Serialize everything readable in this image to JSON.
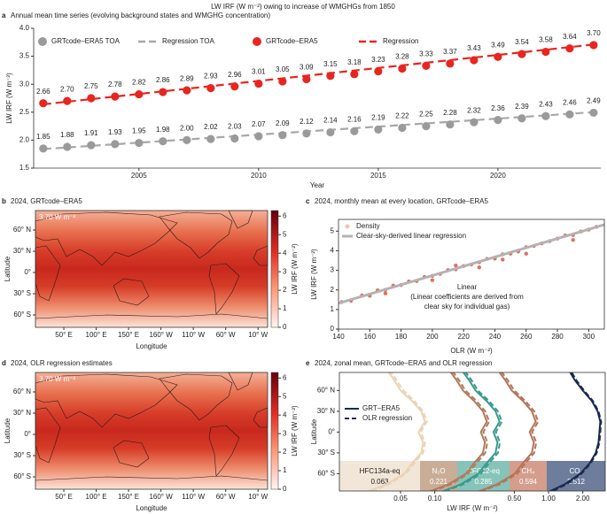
{
  "title": "LW IRF (W m⁻²) owing to increase of WMGHGs from 1850",
  "chart_data": [
    {
      "type": "line",
      "label": "a",
      "title": "Annual mean time series (evolving background states and WMGHG concentration)",
      "xlabel": "Year",
      "ylabel": "LW IRF (W m⁻²)",
      "x": [
        2001,
        2002,
        2003,
        2004,
        2005,
        2006,
        2007,
        2008,
        2009,
        2010,
        2011,
        2012,
        2013,
        2014,
        2015,
        2016,
        2017,
        2018,
        2019,
        2020,
        2021,
        2022,
        2023,
        2024
      ],
      "xlim": [
        2000.6,
        2024.3
      ],
      "xticks": [
        2005,
        2010,
        2015,
        2020
      ],
      "ylim": [
        1.5,
        4.0
      ],
      "yticks": [
        1.5,
        {
          "value": 2,
          "label": "2.0"
        },
        2.5,
        {
          "value": 3,
          "label": "3.0"
        },
        3.5,
        {
          "value": 4,
          "label": "4.0"
        }
      ],
      "series": [
        {
          "name": "GRTcode–ERA5 TOA",
          "color": "#9a9a9a",
          "values": [
            1.85,
            1.88,
            1.91,
            1.93,
            1.95,
            1.98,
            2.0,
            2.02,
            2.03,
            2.07,
            2.09,
            2.12,
            2.14,
            2.16,
            2.19,
            2.22,
            2.25,
            2.28,
            2.32,
            2.36,
            2.39,
            2.43,
            2.46,
            2.49
          ],
          "value_labels": [
            "1.85",
            "1.88",
            "1.91",
            "1.93",
            "1.95",
            "1.98",
            "2.00",
            "2.02",
            "2.03",
            "2.07",
            "2.09",
            "2.12",
            "2.14",
            "2.16",
            "2.19",
            "2.22",
            "2.25",
            "2.28",
            "2.32",
            "2.36",
            "2.39",
            "2.43",
            "2.46",
            "2.49"
          ]
        },
        {
          "name": "Regression TOA",
          "color": "#a8a8a8",
          "dashed": true,
          "x": [
            2001,
            2024
          ],
          "values": [
            1.84,
            2.5
          ]
        },
        {
          "name": "GRTcode–ERA5",
          "color": "#e8251f",
          "values": [
            2.66,
            2.7,
            2.75,
            2.78,
            2.82,
            2.86,
            2.89,
            2.93,
            2.96,
            3.01,
            3.05,
            3.09,
            3.15,
            3.18,
            3.23,
            3.28,
            3.33,
            3.37,
            3.43,
            3.49,
            3.54,
            3.58,
            3.64,
            3.7
          ],
          "value_labels": [
            "2.66",
            "2.70",
            "2.75",
            "2.78",
            "2.82",
            "2.86",
            "2.89",
            "2.93",
            "2.96",
            "3.01",
            "3.05",
            "3.09",
            "3.15",
            "3.18",
            "3.23",
            "3.28",
            "3.33",
            "3.37",
            "3.43",
            "3.49",
            "3.54",
            "3.58",
            "3.64",
            "3.70"
          ]
        },
        {
          "name": "Regression",
          "color": "#e8251f",
          "dashed": true,
          "x": [
            2001,
            2024
          ],
          "values": [
            2.64,
            3.71
          ]
        }
      ]
    },
    {
      "type": "map",
      "label": "b",
      "title": "2024, GRTcode–ERA5",
      "annotation": "3.70 W m⁻²",
      "xlabel": "Longitude",
      "ylabel": "Latitude",
      "lat_ticks": [
        {
          "value": 60,
          "label": "60° N"
        },
        {
          "value": 30,
          "label": "30° N"
        },
        {
          "value": 0,
          "label": "0°"
        },
        {
          "value": -30,
          "label": "30° S"
        },
        {
          "value": -60,
          "label": "60° S"
        }
      ],
      "lon_ticks": [
        {
          "value": 50,
          "label": "50° E"
        },
        {
          "value": 100,
          "label": "100° E"
        },
        {
          "value": 150,
          "label": "150° E"
        },
        {
          "value": 200,
          "label": "160° W"
        },
        {
          "value": 250,
          "label": "110° W"
        },
        {
          "value": 300,
          "label": "60° W"
        },
        {
          "value": 350,
          "label": "10° W"
        }
      ],
      "colorbar": {
        "label": "LW IRF (W m⁻²)",
        "lim": [
          0,
          6.3
        ],
        "ticks": [
          0,
          1,
          2,
          3,
          4,
          5,
          6
        ]
      }
    },
    {
      "type": "scatter",
      "label": "c",
      "title": "2024, monthly mean at every location, GRTcode–ERA5",
      "xlabel": "OLR (W m⁻²)",
      "ylabel": "LW IRF (W m⁻²)",
      "xlim": [
        140,
        310
      ],
      "xticks": [
        140,
        160,
        180,
        200,
        220,
        240,
        260,
        280,
        300
      ],
      "ylim": [
        0,
        5.6
      ],
      "yticks": [
        0,
        1,
        2,
        3,
        4,
        5
      ],
      "annotation": [
        "Linear",
        "(Linear coefficients are derived from",
        "clear sky for individual gas)"
      ],
      "series": [
        {
          "name": "Density",
          "color": "#d7301f",
          "x": [
            142,
            148,
            155,
            160,
            165,
            170,
            175,
            180,
            185,
            190,
            195,
            200,
            205,
            210,
            215,
            220,
            225,
            230,
            235,
            240,
            245,
            250,
            255,
            260,
            265,
            270,
            275,
            280,
            285,
            290,
            295,
            300,
            305,
            170,
            200,
            230,
            260,
            290,
            215,
            245
          ],
          "values": [
            1.38,
            1.45,
            1.72,
            1.7,
            1.98,
            2.0,
            2.22,
            2.25,
            2.43,
            2.45,
            2.66,
            2.72,
            2.82,
            3.01,
            3.05,
            3.22,
            3.3,
            3.42,
            3.58,
            3.6,
            3.82,
            3.85,
            3.96,
            4.18,
            4.25,
            4.38,
            4.49,
            4.62,
            4.78,
            4.8,
            4.98,
            5.08,
            5.22,
            1.82,
            2.5,
            3.15,
            3.85,
            4.55,
            3.25,
            3.55
          ]
        },
        {
          "name": "Clear-sky-derived linear regression",
          "color": "#b3b3b3",
          "line": true,
          "x": [
            140,
            310
          ],
          "values": [
            1.32,
            5.33
          ]
        }
      ]
    },
    {
      "type": "map",
      "label": "d",
      "title": "2024, OLR regression estimates",
      "annotation": "3.70 W m⁻²",
      "xlabel": "Longitude",
      "ylabel": "Latitude",
      "lat_ticks": [
        {
          "value": 60,
          "label": "60° N"
        },
        {
          "value": 30,
          "label": "30° N"
        },
        {
          "value": 0,
          "label": "0°"
        },
        {
          "value": -30,
          "label": "30° S"
        },
        {
          "value": -60,
          "label": "60° S"
        }
      ],
      "lon_ticks": [
        {
          "value": 50,
          "label": "50° E"
        },
        {
          "value": 100,
          "label": "100° E"
        },
        {
          "value": 150,
          "label": "150° E"
        },
        {
          "value": 200,
          "label": "160° W"
        },
        {
          "value": 250,
          "label": "110° W"
        },
        {
          "value": 300,
          "label": "60° W"
        },
        {
          "value": 350,
          "label": "10° W"
        }
      ],
      "colorbar": {
        "label": "LW IRF (W m⁻²)",
        "lim": [
          0,
          6.3
        ],
        "ticks": [
          0,
          1,
          2,
          3,
          4,
          5,
          6
        ]
      }
    },
    {
      "type": "profile",
      "label": "e",
      "title": "2024, zonal mean, GRTcode–ERA5 and OLR regression",
      "xlabel": "LW IRF (W m⁻²)",
      "ylabel": "Latitude",
      "log_x": true,
      "xlim": [
        0.0145,
        3.15
      ],
      "xticks": [
        0.05,
        {
          "value": 0.1,
          "label": "0.10"
        },
        {
          "value": 0.5,
          "label": "0.50"
        },
        {
          "value": 1,
          "label": "1.00"
        },
        {
          "value": 2,
          "label": "2.00"
        }
      ],
      "ylim": [
        -85,
        86
      ],
      "yticks": [
        {
          "value": 60,
          "label": "60° N"
        },
        {
          "value": 30,
          "label": "30° N"
        },
        {
          "value": 0,
          "label": "0°"
        },
        {
          "value": -30,
          "label": "30° S"
        },
        {
          "value": -60,
          "label": "60° S"
        }
      ],
      "legend": [
        "GRT–ERA5",
        "OLR regression"
      ],
      "y": [
        -90,
        -75,
        -60,
        -45,
        -30,
        -15,
        0,
        15,
        30,
        45,
        60,
        75,
        90
      ],
      "gases": [
        {
          "name": "HFC134a-eq",
          "mean": 0.063,
          "color": "#ead3b6",
          "box": "#f2e6d8",
          "grt": [
            0.022,
            0.038,
            0.054,
            0.063,
            0.076,
            0.079,
            0.072,
            0.082,
            0.076,
            0.063,
            0.05,
            0.044,
            0.038
          ],
          "olr": [
            0.024,
            0.04,
            0.056,
            0.066,
            0.079,
            0.082,
            0.075,
            0.085,
            0.079,
            0.066,
            0.053,
            0.046,
            0.04
          ]
        },
        {
          "name": "N₂O",
          "mean": 0.221,
          "color": "#b07c5c",
          "box": "#c9ad97",
          "grt": [
            0.077,
            0.133,
            0.188,
            0.221,
            0.265,
            0.276,
            0.254,
            0.287,
            0.265,
            0.221,
            0.177,
            0.155,
            0.133
          ],
          "olr": [
            0.081,
            0.14,
            0.197,
            0.232,
            0.278,
            0.29,
            0.267,
            0.301,
            0.278,
            0.232,
            0.186,
            0.163,
            0.14
          ]
        },
        {
          "name": "CFC12-eq",
          "mean": 0.285,
          "color": "#3a9a8f",
          "box": "#86c3b9",
          "grt": [
            0.1,
            0.171,
            0.242,
            0.285,
            0.342,
            0.356,
            0.328,
            0.371,
            0.342,
            0.285,
            0.228,
            0.2,
            0.171
          ],
          "olr": [
            0.105,
            0.18,
            0.254,
            0.299,
            0.359,
            0.374,
            0.344,
            0.389,
            0.359,
            0.299,
            0.239,
            0.21,
            0.18
          ]
        },
        {
          "name": "CH₄",
          "mean": 0.594,
          "color": "#b5735a",
          "box": "#d59d8c",
          "grt": [
            0.208,
            0.356,
            0.505,
            0.594,
            0.713,
            0.743,
            0.683,
            0.772,
            0.713,
            0.594,
            0.475,
            0.416,
            0.356
          ],
          "olr": [
            0.218,
            0.374,
            0.53,
            0.624,
            0.749,
            0.78,
            0.717,
            0.811,
            0.749,
            0.624,
            0.499,
            0.437,
            0.374
          ]
        },
        {
          "name": "CO₂",
          "mean": 2.512,
          "color": "#1b2a4e",
          "box": "#6e7d9c",
          "grt": [
            0.9,
            1.4,
            1.9,
            2.3,
            2.6,
            2.75,
            2.8,
            2.85,
            2.7,
            2.4,
            2.0,
            1.7,
            1.5
          ],
          "olr": [
            0.95,
            1.45,
            1.95,
            2.35,
            2.65,
            2.8,
            2.85,
            2.9,
            2.75,
            2.45,
            2.05,
            1.75,
            1.55
          ]
        }
      ]
    }
  ]
}
